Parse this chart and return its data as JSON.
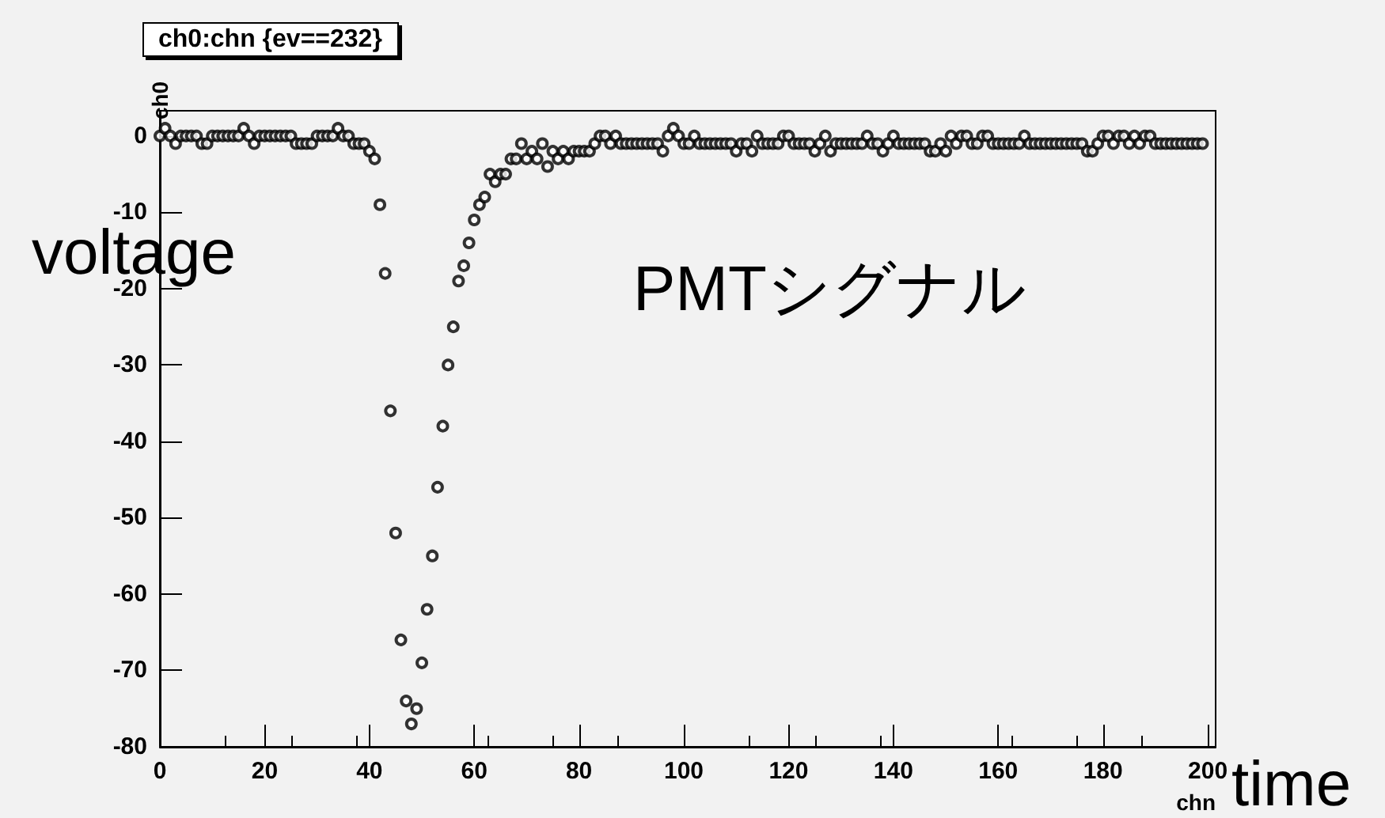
{
  "chart_data": {
    "type": "scatter",
    "title": "ch0:chn {ev==232}",
    "xlabel": "chn",
    "ylabel": "ch0",
    "annotations": [
      "voltage",
      "PMTシグナル",
      "time"
    ],
    "x": [
      0,
      1,
      2,
      3,
      4,
      5,
      6,
      7,
      8,
      9,
      10,
      11,
      12,
      13,
      14,
      15,
      16,
      17,
      18,
      19,
      20,
      21,
      22,
      23,
      24,
      25,
      26,
      27,
      28,
      29,
      30,
      31,
      32,
      33,
      34,
      35,
      36,
      37,
      38,
      39,
      40,
      41,
      42,
      43,
      44,
      45,
      46,
      47,
      48,
      49,
      50,
      51,
      52,
      53,
      54,
      55,
      56,
      57,
      58,
      59,
      60,
      61,
      62,
      63,
      64,
      65,
      66,
      67,
      68,
      69,
      70,
      71,
      72,
      73,
      74,
      75,
      76,
      77,
      78,
      79,
      80,
      81,
      82,
      83,
      84,
      85,
      86,
      87,
      88,
      89,
      90,
      91,
      92,
      93,
      94,
      95,
      96,
      97,
      98,
      99,
      100,
      101,
      102,
      103,
      104,
      105,
      106,
      107,
      108,
      109,
      110,
      111,
      112,
      113,
      114,
      115,
      116,
      117,
      118,
      119,
      120,
      121,
      122,
      123,
      124,
      125,
      126,
      127,
      128,
      129,
      130,
      131,
      132,
      133,
      134,
      135,
      136,
      137,
      138,
      139,
      140,
      141,
      142,
      143,
      144,
      145,
      146,
      147,
      148,
      149,
      150,
      151,
      152,
      153,
      154,
      155,
      156,
      157,
      158,
      159,
      160,
      161,
      162,
      163,
      164,
      165,
      166,
      167,
      168,
      169,
      170,
      171,
      172,
      173,
      174,
      175,
      176,
      177,
      178,
      179,
      180,
      181,
      182,
      183,
      184,
      185,
      186,
      187,
      188,
      189,
      190,
      191,
      192,
      193,
      194,
      195,
      196,
      197,
      198,
      199
    ],
    "values": [
      0,
      1,
      0,
      -1,
      0,
      0,
      0,
      0,
      -1,
      -1,
      0,
      0,
      0,
      0,
      0,
      0,
      1,
      0,
      -1,
      0,
      0,
      0,
      0,
      0,
      0,
      0,
      -1,
      -1,
      -1,
      -1,
      0,
      0,
      0,
      0,
      1,
      0,
      0,
      -1,
      -1,
      -1,
      -2,
      -3,
      -9,
      -18,
      -36,
      -52,
      -66,
      -74,
      -77,
      -75,
      -69,
      -62,
      -55,
      -46,
      -38,
      -30,
      -25,
      -19,
      -17,
      -14,
      -11,
      -9,
      -8,
      -5,
      -6,
      -5,
      -5,
      -3,
      -3,
      -1,
      -3,
      -2,
      -3,
      -1,
      -4,
      -2,
      -3,
      -2,
      -3,
      -2,
      -2,
      -2,
      -2,
      -1,
      0,
      0,
      -1,
      0,
      -1,
      -1,
      -1,
      -1,
      -1,
      -1,
      -1,
      -1,
      -2,
      0,
      1,
      0,
      -1,
      -1,
      0,
      -1,
      -1,
      -1,
      -1,
      -1,
      -1,
      -1,
      -2,
      -1,
      -1,
      -2,
      0,
      -1,
      -1,
      -1,
      -1,
      0,
      0,
      -1,
      -1,
      -1,
      -1,
      -2,
      -1,
      0,
      -2,
      -1,
      -1,
      -1,
      -1,
      -1,
      -1,
      0,
      -1,
      -1,
      -2,
      -1,
      0,
      -1,
      -1,
      -1,
      -1,
      -1,
      -1,
      -2,
      -2,
      -1,
      -2,
      0,
      -1,
      0,
      0,
      -1,
      -1,
      0,
      0,
      -1,
      -1,
      -1,
      -1,
      -1,
      -1,
      0,
      -1,
      -1,
      -1,
      -1,
      -1,
      -1,
      -1,
      -1,
      -1,
      -1,
      -1,
      -2,
      -2,
      -1,
      0,
      0,
      -1,
      0,
      0,
      -1,
      0,
      -1,
      0,
      0,
      -1,
      -1,
      -1,
      -1,
      -1,
      -1,
      -1,
      -1,
      -1,
      -1
    ],
    "color": "#000000",
    "marker": "circle",
    "xlim": [
      0,
      201.5
    ],
    "xticks": [
      0,
      20,
      40,
      60,
      80,
      100,
      120,
      140,
      160,
      180,
      200
    ],
    "ylim": [
      -80,
      3.3
    ],
    "yticks": [
      -80,
      -70,
      -60,
      -50,
      -40,
      -30,
      -20,
      -10,
      0
    ]
  }
}
